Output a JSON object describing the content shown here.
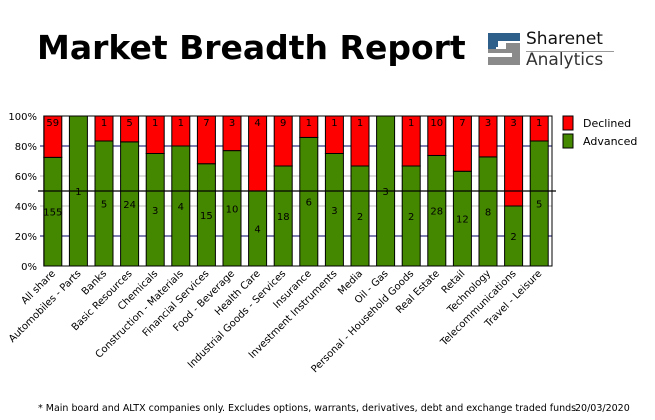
{
  "header": {
    "title": "Market Breadth Report",
    "logo_line1": "Sharenet",
    "logo_line2": "Analytics"
  },
  "footer": {
    "note": "* Main board and ALTX companies only. Excludes options, warrants, derivatives, debt and exchange traded funds",
    "date": "20/03/2020"
  },
  "colors": {
    "declined": "#ff0000",
    "advanced": "#448800"
  },
  "chart_data": {
    "type": "bar",
    "stacked": "percent",
    "title": "",
    "xlabel": "",
    "ylabel": "",
    "ylim": [
      0,
      100
    ],
    "yticks": [
      "0%",
      "20%",
      "40%",
      "60%",
      "80%",
      "100%"
    ],
    "legend_position": "right",
    "categories": [
      "All share",
      "Automobiles - Parts",
      "Banks",
      "Basic Resources",
      "Chemicals",
      "Construction - Materials",
      "Financial Services",
      "Food - Beverage",
      "Health Care",
      "Industrial Goods - Services",
      "Insurance",
      "Investment Instruments",
      "Media",
      "Oil - Gas",
      "Personal - Household Goods",
      "Real Estate",
      "Retail",
      "Technology",
      "Telecommunications",
      "Travel - Leisure"
    ],
    "series": [
      {
        "name": "Declined",
        "values": [
          59,
          0,
          1,
          5,
          1,
          1,
          7,
          3,
          4,
          9,
          1,
          1,
          1,
          0,
          1,
          10,
          7,
          3,
          3,
          1
        ]
      },
      {
        "name": "Advanced",
        "values": [
          155,
          1,
          5,
          24,
          3,
          4,
          15,
          10,
          4,
          18,
          6,
          3,
          2,
          3,
          2,
          28,
          12,
          8,
          2,
          5
        ]
      }
    ]
  }
}
